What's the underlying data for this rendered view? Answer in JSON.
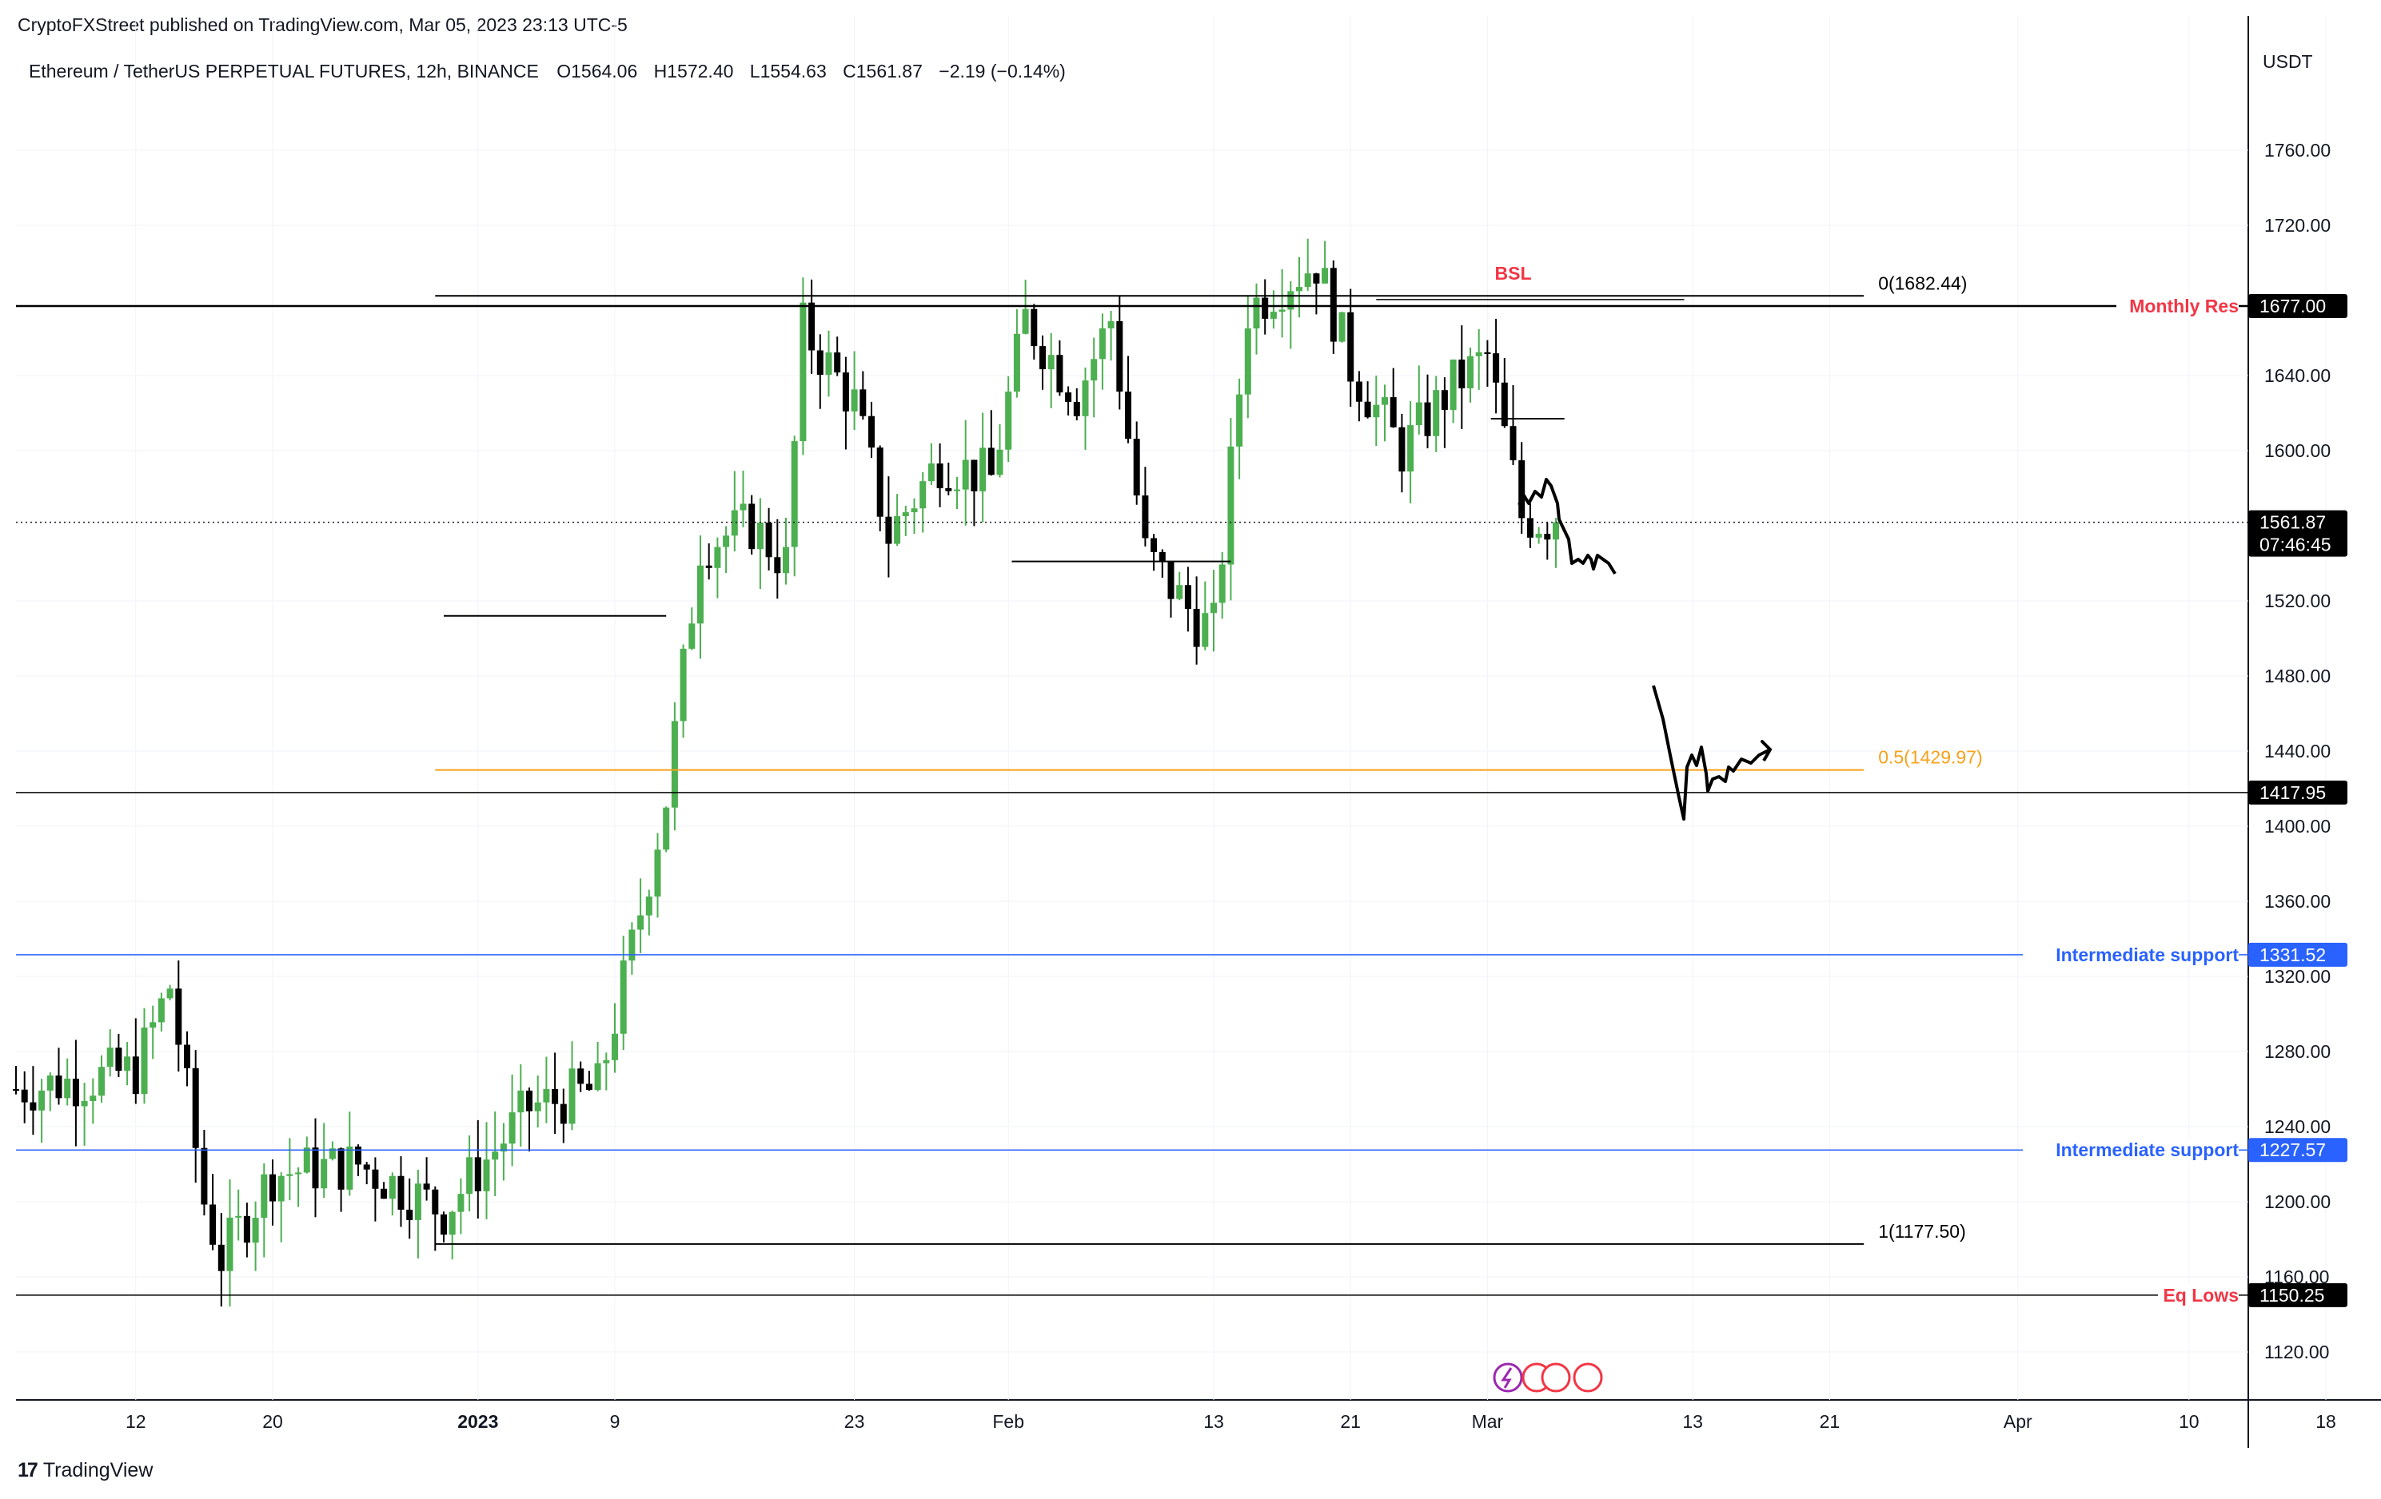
{
  "header": {
    "publisher": "CryptoFXStreet published on TradingView.com, Mar 05, 2023 23:13 UTC-5",
    "symbol": "Ethereum / TetherUS PERPETUAL FUTURES, 12h, BINANCE",
    "o_label": "O",
    "open": "1564.06",
    "h_label": "H",
    "high": "1572.40",
    "l_label": "L",
    "low": "1554.63",
    "c_label": "C",
    "close": "1561.87",
    "change": "−2.19 (−0.14%)"
  },
  "axis": {
    "unit": "USDT",
    "y_ticks": [
      "1760.00",
      "1720.00",
      "1640.00",
      "1600.00",
      "1520.00",
      "1480.00",
      "1440.00",
      "1400.00",
      "1360.00",
      "1320.00",
      "1280.00",
      "1240.00",
      "1200.00",
      "1160.00",
      "1120.00"
    ],
    "x_ticks": [
      "12",
      "20",
      "2023",
      "9",
      "23",
      "Feb",
      "13",
      "21",
      "Mar",
      "13",
      "21",
      "Apr",
      "10",
      "18"
    ],
    "current_price": "1561.87",
    "countdown": "07:46:45"
  },
  "colors": {
    "up": "#4caf50",
    "down": "#000000",
    "support_line": "#2962ff",
    "label_red": "#f23645",
    "fib_mid": "#f7a21b",
    "price_tag_bg": "#000000"
  },
  "levels": [
    {
      "id": "monthly-res",
      "price": 1677.0,
      "label": "Monthly Res",
      "value_tag": "1677.00",
      "color": "#000000",
      "label_color": "#f23645",
      "width": 2.5
    },
    {
      "id": "level-1417",
      "price": 1417.95,
      "label": "",
      "value_tag": "1417.95",
      "color": "#000000",
      "label_color": "#000000",
      "width": 1.5
    },
    {
      "id": "intermediate-support-1",
      "price": 1331.52,
      "label": "Intermediate support",
      "value_tag": "1331.52",
      "color": "#2962ff",
      "label_color": "#2962ff",
      "width": 1.5
    },
    {
      "id": "intermediate-support-2",
      "price": 1227.57,
      "label": "Intermediate support",
      "value_tag": "1227.57",
      "color": "#2962ff",
      "label_color": "#2962ff",
      "width": 1.5
    },
    {
      "id": "eq-lows",
      "price": 1150.25,
      "label": "Eq Lows",
      "value_tag": "1150.25",
      "color": "#000000",
      "label_color": "#f23645",
      "width": 1.5
    }
  ],
  "fib": {
    "levels": [
      {
        "label": "0(1682.44)",
        "price": 1682.44,
        "color": "#000000"
      },
      {
        "label": "0.5(1429.97)",
        "price": 1429.97,
        "color": "#f7a21b"
      },
      {
        "label": "1(1177.50)",
        "price": 1177.5,
        "color": "#000000"
      }
    ]
  },
  "annotations": {
    "bsl": "BSL"
  },
  "footer": {
    "brand": "TradingView",
    "logo": "17"
  },
  "chart_data": {
    "type": "candlestick",
    "title": "Ethereum / TetherUS PERPETUAL FUTURES, 12h, BINANCE",
    "ylabel": "USDT",
    "ylim": [
      1090,
      1790
    ],
    "x_range": [
      "2022-12-05",
      "2023-04-19"
    ],
    "interval": "12h",
    "approx_close_path": [
      {
        "date": "2022-12-05",
        "close": 1260
      },
      {
        "date": "2022-12-09",
        "close": 1265
      },
      {
        "date": "2022-12-12",
        "close": 1270
      },
      {
        "date": "2022-12-14",
        "close": 1315
      },
      {
        "date": "2022-12-16",
        "close": 1200
      },
      {
        "date": "2022-12-17",
        "close": 1170
      },
      {
        "date": "2022-12-20",
        "close": 1215
      },
      {
        "date": "2022-12-25",
        "close": 1220
      },
      {
        "date": "2022-12-30",
        "close": 1195
      },
      {
        "date": "2023-01-04",
        "close": 1250
      },
      {
        "date": "2023-01-08",
        "close": 1260
      },
      {
        "date": "2023-01-10",
        "close": 1335
      },
      {
        "date": "2023-01-12",
        "close": 1415
      },
      {
        "date": "2023-01-14",
        "close": 1550
      },
      {
        "date": "2023-01-17",
        "close": 1560
      },
      {
        "date": "2023-01-19",
        "close": 1540
      },
      {
        "date": "2023-01-20",
        "close": 1665
      },
      {
        "date": "2023-01-23",
        "close": 1625
      },
      {
        "date": "2023-01-25",
        "close": 1555
      },
      {
        "date": "2023-01-28",
        "close": 1595
      },
      {
        "date": "2023-01-31",
        "close": 1585
      },
      {
        "date": "2023-02-02",
        "close": 1670
      },
      {
        "date": "2023-02-05",
        "close": 1630
      },
      {
        "date": "2023-02-07",
        "close": 1670
      },
      {
        "date": "2023-02-09",
        "close": 1545
      },
      {
        "date": "2023-02-12",
        "close": 1510
      },
      {
        "date": "2023-02-13",
        "close": 1505
      },
      {
        "date": "2023-02-15",
        "close": 1675
      },
      {
        "date": "2023-02-17",
        "close": 1690
      },
      {
        "date": "2023-02-19",
        "close": 1700
      },
      {
        "date": "2023-02-21",
        "close": 1645
      },
      {
        "date": "2023-02-24",
        "close": 1600
      },
      {
        "date": "2023-02-27",
        "close": 1635
      },
      {
        "date": "2023-03-01",
        "close": 1650
      },
      {
        "date": "2023-03-03",
        "close": 1565
      },
      {
        "date": "2023-03-05",
        "close": 1561.87
      }
    ]
  }
}
